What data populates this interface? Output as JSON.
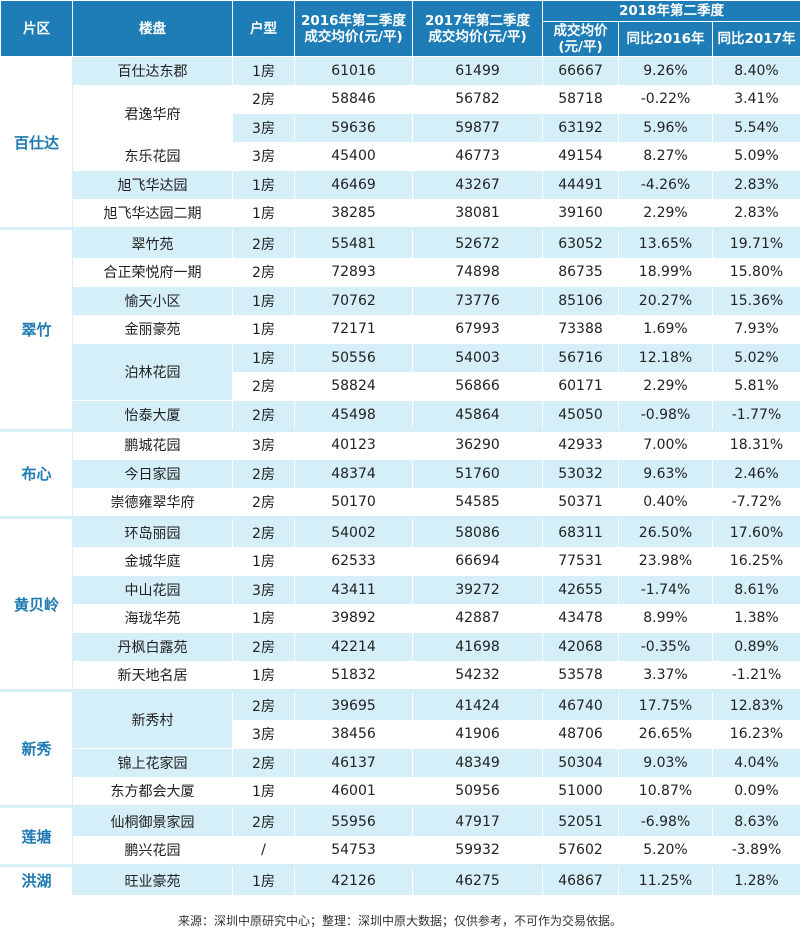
{
  "header": {
    "district": "片区",
    "estate": "楼盘",
    "unit": "户型",
    "q2_2016": "2016年第二季度\n成交均价(元/平)",
    "q2_2017": "2017年第二季度\n成交均价(元/平)",
    "q2_2018": "2018年第二季度",
    "price_2018": "成交均价\n(元/平)",
    "yoy_2016": "同比2016年",
    "yoy_2017": "同比2017年"
  },
  "groups": [
    {
      "district": "百仕达",
      "estates": [
        {
          "name": "百仕达东郡",
          "rows": [
            [
              "1房",
              "61016",
              "61499",
              "66667",
              "9.26%",
              "8.40%"
            ]
          ]
        },
        {
          "name": "君逸华府",
          "rows": [
            [
              "2房",
              "58846",
              "56782",
              "58718",
              "-0.22%",
              "3.41%"
            ],
            [
              "3房",
              "59636",
              "59877",
              "63192",
              "5.96%",
              "5.54%"
            ]
          ]
        },
        {
          "name": "东乐花园",
          "rows": [
            [
              "3房",
              "45400",
              "46773",
              "49154",
              "8.27%",
              "5.09%"
            ]
          ]
        },
        {
          "name": "旭飞华达园",
          "rows": [
            [
              "1房",
              "46469",
              "43267",
              "44491",
              "-4.26%",
              "2.83%"
            ]
          ]
        },
        {
          "name": "旭飞华达园二期",
          "rows": [
            [
              "1房",
              "38285",
              "38081",
              "39160",
              "2.29%",
              "2.83%"
            ]
          ]
        }
      ]
    },
    {
      "district": "翠竹",
      "estates": [
        {
          "name": "翠竹苑",
          "rows": [
            [
              "2房",
              "55481",
              "52672",
              "63052",
              "13.65%",
              "19.71%"
            ]
          ]
        },
        {
          "name": "合正荣悦府一期",
          "rows": [
            [
              "2房",
              "72893",
              "74898",
              "86735",
              "18.99%",
              "15.80%"
            ]
          ]
        },
        {
          "name": "愉天小区",
          "rows": [
            [
              "1房",
              "70762",
              "73776",
              "85106",
              "20.27%",
              "15.36%"
            ]
          ]
        },
        {
          "name": "金丽豪苑",
          "rows": [
            [
              "1房",
              "72171",
              "67993",
              "73388",
              "1.69%",
              "7.93%"
            ]
          ]
        },
        {
          "name": "泊林花园",
          "rows": [
            [
              "1房",
              "50556",
              "54003",
              "56716",
              "12.18%",
              "5.02%"
            ],
            [
              "2房",
              "58824",
              "56866",
              "60171",
              "2.29%",
              "5.81%"
            ]
          ]
        },
        {
          "name": "怡泰大厦",
          "rows": [
            [
              "2房",
              "45498",
              "45864",
              "45050",
              "-0.98%",
              "-1.77%"
            ]
          ]
        }
      ]
    },
    {
      "district": "布心",
      "estates": [
        {
          "name": "鹏城花园",
          "rows": [
            [
              "3房",
              "40123",
              "36290",
              "42933",
              "7.00%",
              "18.31%"
            ]
          ]
        },
        {
          "name": "今日家园",
          "rows": [
            [
              "2房",
              "48374",
              "51760",
              "53032",
              "9.63%",
              "2.46%"
            ]
          ]
        },
        {
          "name": "崇德雍翠华府",
          "rows": [
            [
              "2房",
              "50170",
              "54585",
              "50371",
              "0.40%",
              "-7.72%"
            ]
          ]
        }
      ]
    },
    {
      "district": "黄贝岭",
      "estates": [
        {
          "name": "环岛丽园",
          "rows": [
            [
              "2房",
              "54002",
              "58086",
              "68311",
              "26.50%",
              "17.60%"
            ]
          ]
        },
        {
          "name": "金城华庭",
          "rows": [
            [
              "1房",
              "62533",
              "66694",
              "77531",
              "23.98%",
              "16.25%"
            ]
          ]
        },
        {
          "name": "中山花园",
          "rows": [
            [
              "3房",
              "43411",
              "39272",
              "42655",
              "-1.74%",
              "8.61%"
            ]
          ]
        },
        {
          "name": "海珑华苑",
          "rows": [
            [
              "1房",
              "39892",
              "42887",
              "43478",
              "8.99%",
              "1.38%"
            ]
          ]
        },
        {
          "name": "丹枫白露苑",
          "rows": [
            [
              "2房",
              "42214",
              "41698",
              "42068",
              "-0.35%",
              "0.89%"
            ]
          ]
        },
        {
          "name": "新天地名居",
          "rows": [
            [
              "1房",
              "51832",
              "54232",
              "53578",
              "3.37%",
              "-1.21%"
            ]
          ]
        }
      ]
    },
    {
      "district": "新秀",
      "estates": [
        {
          "name": "新秀村",
          "rows": [
            [
              "2房",
              "39695",
              "41424",
              "46740",
              "17.75%",
              "12.83%"
            ],
            [
              "3房",
              "38456",
              "41906",
              "48706",
              "26.65%",
              "16.23%"
            ]
          ]
        },
        {
          "name": "锦上花家园",
          "rows": [
            [
              "2房",
              "46137",
              "48349",
              "50304",
              "9.03%",
              "4.04%"
            ]
          ]
        },
        {
          "name": "东方都会大厦",
          "rows": [
            [
              "1房",
              "46001",
              "50956",
              "51000",
              "10.87%",
              "0.09%"
            ]
          ]
        }
      ]
    },
    {
      "district": "莲塘",
      "estates": [
        {
          "name": "仙桐御景家园",
          "rows": [
            [
              "2房",
              "55956",
              "47917",
              "52051",
              "-6.98%",
              "8.63%"
            ]
          ]
        },
        {
          "name": "鹏兴花园",
          "rows": [
            [
              "/",
              "54753",
              "59932",
              "57602",
              "5.20%",
              "-3.89%"
            ]
          ]
        }
      ]
    },
    {
      "district": "洪湖",
      "estates": [
        {
          "name": "旺业豪苑",
          "rows": [
            [
              "1房",
              "42126",
              "46275",
              "46867",
              "11.25%",
              "1.28%"
            ]
          ]
        }
      ]
    }
  ],
  "footer": "来源：深圳中原研究中心；整理：深圳中原大数据；仅供参考，不可作为交易依据。"
}
